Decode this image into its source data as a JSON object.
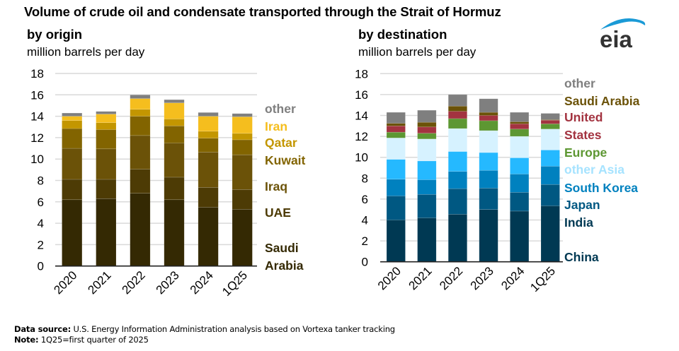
{
  "title": "Volume of crude oil and condensate transported through the Strait of Hormuz",
  "logo_text": "eia",
  "footer": {
    "source_label": "Data source:",
    "source_text": " U.S. Energy Information Administration analysis based on Vortexa tanker tracking",
    "note_label": "Note:",
    "note_text": " 1Q25=first quarter of 2025"
  },
  "chart_data": [
    {
      "type": "bar",
      "stacked": true,
      "title": "by origin",
      "ylabel": "million barrels per day",
      "xlabel": "",
      "ylim": [
        0,
        18
      ],
      "yticks": [
        0,
        2,
        4,
        6,
        8,
        10,
        12,
        14,
        16,
        18
      ],
      "grid": true,
      "legend": "right (labels beside stacks)",
      "categories": [
        "2020",
        "2021",
        "2022",
        "2023",
        "2024",
        "1Q25"
      ],
      "series": [
        {
          "name": "Saudi Arabia",
          "color": "#342903",
          "values": [
            6.2,
            6.3,
            6.8,
            6.2,
            5.5,
            5.3
          ]
        },
        {
          "name": "UAE",
          "color": "#4d3b05",
          "values": [
            1.9,
            1.8,
            2.25,
            2.1,
            1.85,
            1.85
          ]
        },
        {
          "name": "Iraq",
          "color": "#6b5208",
          "values": [
            2.9,
            2.85,
            3.15,
            3.2,
            3.3,
            3.25
          ]
        },
        {
          "name": "Kuwait",
          "color": "#826400",
          "values": [
            1.85,
            1.8,
            1.8,
            1.6,
            1.3,
            1.4
          ]
        },
        {
          "name": "Qatar",
          "color": "#c39600",
          "values": [
            0.75,
            0.65,
            0.65,
            0.65,
            0.65,
            0.6
          ]
        },
        {
          "name": "Iran",
          "color": "#f5be1e",
          "values": [
            0.4,
            0.8,
            1.0,
            1.5,
            1.4,
            1.55
          ]
        },
        {
          "name": "other",
          "color": "#7f7f7f",
          "values": [
            0.3,
            0.25,
            0.35,
            0.3,
            0.35,
            0.3
          ]
        }
      ],
      "legend_labels": [
        {
          "text": "other",
          "color": "#7f7f7f"
        },
        {
          "text": "Iran",
          "color": "#f5be1e"
        },
        {
          "text": "Qatar",
          "color": "#c39600"
        },
        {
          "text": "Kuwait",
          "color": "#826400"
        },
        {
          "text": "Iraq",
          "color": "#6b5208"
        },
        {
          "text": "UAE",
          "color": "#4d3b05"
        },
        {
          "text": "Saudi",
          "color": "#342903"
        },
        {
          "text": "Arabia",
          "color": "#342903"
        }
      ]
    },
    {
      "type": "bar",
      "stacked": true,
      "title": "by destination",
      "ylabel": "million barrels per day",
      "xlabel": "",
      "ylim": [
        0,
        18
      ],
      "yticks": [
        0,
        2,
        4,
        6,
        8,
        10,
        12,
        14,
        16,
        18
      ],
      "grid": true,
      "legend": "right (labels beside stacks)",
      "categories": [
        "2020",
        "2021",
        "2022",
        "2023",
        "2024",
        "1Q25"
      ],
      "series": [
        {
          "name": "China",
          "color": "#003953",
          "values": [
            4.0,
            4.2,
            4.55,
            5.0,
            4.85,
            5.35
          ]
        },
        {
          "name": "India",
          "color": "#005882",
          "values": [
            2.3,
            2.25,
            2.45,
            2.05,
            1.8,
            2.05
          ]
        },
        {
          "name": "Japan",
          "color": "#0081bf",
          "values": [
            1.6,
            1.4,
            1.65,
            1.7,
            1.75,
            1.75
          ]
        },
        {
          "name": "South Korea",
          "color": "#25b9ff",
          "values": [
            1.9,
            1.8,
            1.9,
            1.7,
            1.55,
            1.55
          ]
        },
        {
          "name": "other Asia",
          "color": "#d6f2ff",
          "values": [
            2.05,
            2.1,
            2.2,
            2.1,
            2.05,
            2.0
          ]
        },
        {
          "name": "Europe",
          "color": "#5d9732",
          "values": [
            0.55,
            0.55,
            0.95,
            0.95,
            0.7,
            0.5
          ]
        },
        {
          "name": "United States",
          "color": "#a33340",
          "values": [
            0.6,
            0.6,
            0.7,
            0.5,
            0.5,
            0.35
          ]
        },
        {
          "name": "Saudi Arabia",
          "color": "#6b5208",
          "values": [
            0.25,
            0.45,
            0.5,
            0.3,
            0.2,
            0.05
          ]
        },
        {
          "name": "other",
          "color": "#7f7f7f",
          "values": [
            1.05,
            1.15,
            1.1,
            1.3,
            0.9,
            0.6
          ]
        }
      ],
      "legend_labels": [
        {
          "text": "other",
          "color": "#7f7f7f"
        },
        {
          "text": "Saudi Arabia",
          "color": "#6b5208"
        },
        {
          "text": "United",
          "color": "#a33340"
        },
        {
          "text": "States",
          "color": "#a33340"
        },
        {
          "text": "Europe",
          "color": "#5d9732"
        },
        {
          "text": "other Asia",
          "color": "#a6e3ff"
        },
        {
          "text": "South Korea",
          "color": "#0081bf"
        },
        {
          "text": "Japan",
          "color": "#005882"
        },
        {
          "text": "India",
          "color": "#003953"
        },
        {
          "text": "China",
          "color": "#003953"
        }
      ]
    }
  ]
}
